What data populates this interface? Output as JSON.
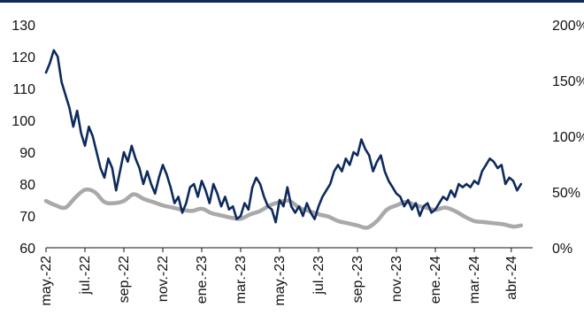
{
  "chart_data": {
    "type": "line",
    "title": "",
    "xlabel": "",
    "ylabel": "",
    "x_tick_labels": [
      "may.-22",
      "jul.-22",
      "sep.-22",
      "nov.-22",
      "ene.-23",
      "mar.-23",
      "may.-23",
      "jul.-23",
      "sep.-23",
      "nov.-23",
      "ene.-24",
      "mar.-24",
      "abr.-24"
    ],
    "x_tick_positions": [
      0,
      2,
      4,
      6,
      8,
      10,
      12,
      14,
      16,
      18,
      20,
      22,
      23.9
    ],
    "x_range": [
      0,
      25
    ],
    "y_left": {
      "min": 60,
      "max": 130,
      "ticks": [
        60,
        70,
        80,
        90,
        100,
        110,
        120,
        130
      ]
    },
    "y_right": {
      "min": 0,
      "max": 200,
      "ticks": [
        0,
        50,
        100,
        150,
        200
      ],
      "tick_labels": [
        "0%",
        "50%",
        "100%",
        "150%",
        "200%"
      ]
    },
    "series": [
      {
        "axis": "left",
        "color": "#0d2a5c",
        "x": [
          0,
          0.2,
          0.4,
          0.6,
          0.8,
          1,
          1.2,
          1.4,
          1.6,
          1.8,
          2,
          2.2,
          2.4,
          2.6,
          2.8,
          3,
          3.2,
          3.4,
          3.6,
          3.8,
          4,
          4.2,
          4.4,
          4.6,
          4.8,
          5,
          5.2,
          5.4,
          5.6,
          5.8,
          6,
          6.2,
          6.4,
          6.6,
          6.8,
          7,
          7.2,
          7.4,
          7.6,
          7.8,
          8,
          8.2,
          8.4,
          8.6,
          8.8,
          9,
          9.2,
          9.4,
          9.6,
          9.8,
          10,
          10.2,
          10.4,
          10.6,
          10.8,
          11,
          11.2,
          11.4,
          11.6,
          11.8,
          12,
          12.2,
          12.4,
          12.6,
          12.8,
          13,
          13.2,
          13.4,
          13.6,
          13.8,
          14,
          14.2,
          14.4,
          14.6,
          14.8,
          15,
          15.2,
          15.4,
          15.6,
          15.8,
          16,
          16.2,
          16.4,
          16.6,
          16.8,
          17,
          17.2,
          17.4,
          17.6,
          17.8,
          18,
          18.2,
          18.4,
          18.6,
          18.8,
          19,
          19.2,
          19.4,
          19.6,
          19.8,
          20,
          20.2,
          20.4,
          20.6,
          20.8,
          21,
          21.2,
          21.4,
          21.6,
          21.8,
          22,
          22.2,
          22.4,
          22.6,
          22.8,
          23,
          23.2,
          23.4,
          23.6,
          23.8,
          24,
          24.2,
          24.4
        ],
        "y": [
          115,
          118,
          122,
          120,
          112,
          108,
          104,
          98,
          103,
          96,
          92,
          98,
          95,
          90,
          85,
          82,
          88,
          85,
          78,
          84,
          90,
          87,
          92,
          88,
          85,
          80,
          84,
          80,
          77,
          82,
          86,
          83,
          79,
          74,
          76,
          71,
          74,
          79,
          80,
          76,
          81,
          78,
          74,
          80,
          77,
          73,
          76,
          72,
          73,
          69,
          70,
          74,
          72,
          79,
          82,
          80,
          76,
          73,
          72,
          68,
          75,
          73,
          79,
          73,
          71,
          73,
          70,
          74,
          71,
          69,
          73,
          76,
          78,
          80,
          84,
          86,
          84,
          88,
          86,
          90,
          89,
          94,
          91,
          89,
          84,
          87,
          89,
          84,
          81,
          79,
          77,
          76,
          73,
          75,
          72,
          74,
          70,
          73,
          74,
          71,
          72,
          74,
          76,
          75,
          78,
          76,
          80,
          79,
          80,
          79,
          81,
          80,
          84,
          86,
          88,
          87,
          85,
          86,
          80,
          82,
          81,
          78,
          80
        ],
        "smooth": false
      },
      {
        "axis": "right",
        "color": "#a9a9a9",
        "x": [
          0,
          0.5,
          1,
          1.5,
          2,
          2.5,
          3,
          3.5,
          4,
          4.5,
          5,
          5.5,
          6,
          6.5,
          7,
          7.5,
          8,
          8.5,
          9,
          9.5,
          10,
          10.5,
          11,
          11.5,
          12,
          12.5,
          13,
          13.5,
          14,
          14.5,
          15,
          15.5,
          16,
          16.5,
          17,
          17.5,
          18,
          18.5,
          19,
          19.5,
          20,
          20.5,
          21,
          21.5,
          22,
          22.5,
          23,
          23.5,
          24,
          24.4
        ],
        "y": [
          42,
          38,
          36,
          45,
          52,
          50,
          41,
          40,
          42,
          48,
          44,
          41,
          38,
          36,
          34,
          33,
          35,
          31,
          29,
          27,
          26,
          30,
          33,
          38,
          41,
          42,
          36,
          33,
          30,
          28,
          24,
          22,
          20,
          18,
          24,
          34,
          38,
          41,
          38,
          36,
          34,
          36,
          33,
          28,
          24,
          23,
          22,
          21,
          19,
          20
        ],
        "smooth": true
      }
    ]
  }
}
